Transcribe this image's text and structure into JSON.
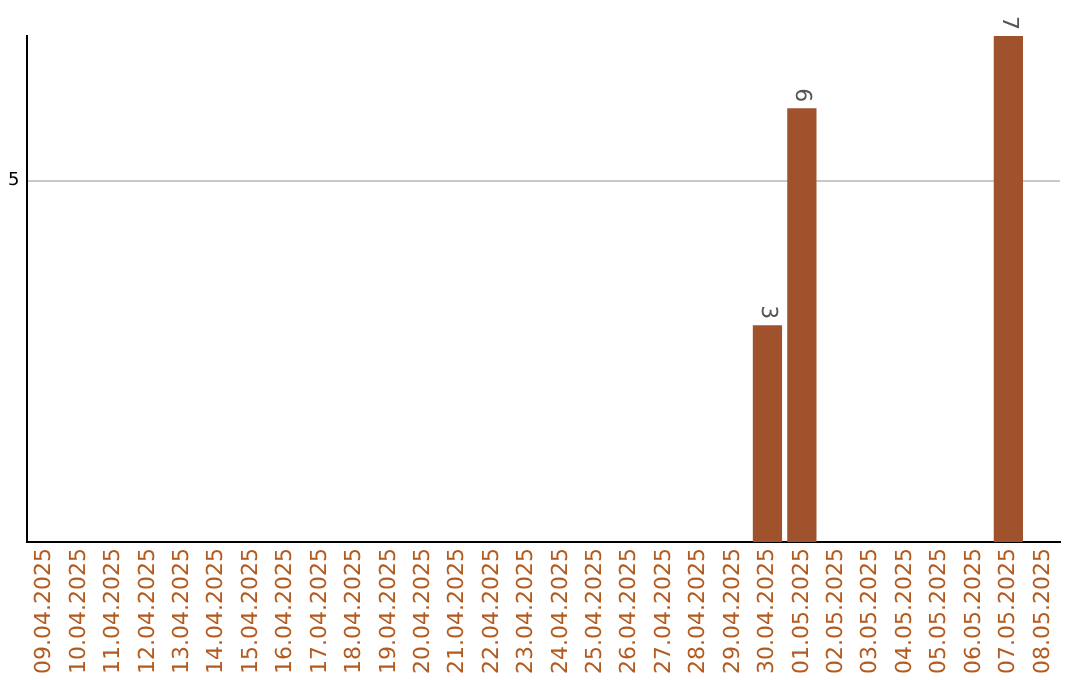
{
  "chart_data": {
    "type": "bar",
    "categories": [
      "09.04.2025",
      "10.04.2025",
      "11.04.2025",
      "12.04.2025",
      "13.04.2025",
      "14.04.2025",
      "15.04.2025",
      "16.04.2025",
      "17.04.2025",
      "18.04.2025",
      "19.04.2025",
      "20.04.2025",
      "21.04.2025",
      "22.04.2025",
      "23.04.2025",
      "24.04.2025",
      "25.04.2025",
      "26.04.2025",
      "27.04.2025",
      "28.04.2025",
      "29.04.2025",
      "30.04.2025",
      "01.05.2025",
      "02.05.2025",
      "03.05.2025",
      "04.05.2025",
      "05.05.2025",
      "06.05.2025",
      "07.05.2025",
      "08.05.2025"
    ],
    "values": [
      null,
      null,
      null,
      null,
      null,
      null,
      null,
      null,
      null,
      null,
      null,
      null,
      null,
      null,
      null,
      null,
      null,
      null,
      null,
      null,
      null,
      3,
      6,
      null,
      null,
      null,
      null,
      null,
      7,
      null
    ],
    "color": "#a0522d",
    "ylim": [
      0,
      7
    ],
    "yticks": [
      5
    ],
    "grid": "y",
    "data_labels": true,
    "legend": false
  }
}
